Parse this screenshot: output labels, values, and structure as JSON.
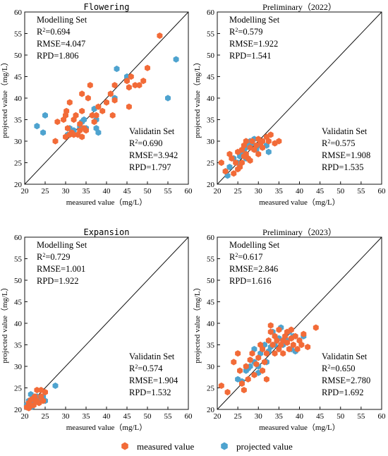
{
  "colors": {
    "measured": "#f26b38",
    "projected": "#4ea3cf",
    "axis": "#111111"
  },
  "legend": {
    "placement": "bottom-center",
    "measured_label": "measured value",
    "projected_label": "projected value",
    "marker": "hexagon"
  },
  "chart_data": [
    {
      "type": "scatter",
      "title": "Flowering",
      "title_style": "mono",
      "xlabel": "measured value（mg/L）",
      "ylabel": "projected value（mg/L）",
      "xlim": [
        20,
        60
      ],
      "ylim": [
        20,
        60
      ],
      "xticks": [
        "20",
        "25",
        "30",
        "35",
        "40",
        "45",
        "50",
        "55",
        "60"
      ],
      "yticks": [
        "20",
        "25",
        "30",
        "35",
        "40",
        "45",
        "50",
        "55",
        "60"
      ],
      "reference_line": "1:1",
      "modelling": {
        "heading": "Modelling Set",
        "r2": "=0.694",
        "rmse": "RMSE=4.047",
        "rpd": "RPD=1.806"
      },
      "validation": {
        "heading": "Validatin Set",
        "r2": "=0.690",
        "rmse": "RMSE=3.942",
        "rpd": "RPD=1.797"
      },
      "series": [
        {
          "name": "measured value",
          "points": [
            [
              27.5,
              30
            ],
            [
              28,
              34.5
            ],
            [
              29.5,
              35
            ],
            [
              30,
              36
            ],
            [
              30.2,
              37
            ],
            [
              30.5,
              33
            ],
            [
              31,
              39
            ],
            [
              31,
              31.5
            ],
            [
              31.5,
              32
            ],
            [
              32,
              35
            ],
            [
              32.5,
              36
            ],
            [
              33,
              31.5
            ],
            [
              33.5,
              32.5
            ],
            [
              33.5,
              34
            ],
            [
              34,
              37
            ],
            [
              34,
              41
            ],
            [
              34.5,
              33
            ],
            [
              35,
              32.5
            ],
            [
              36,
              43
            ],
            [
              36.5,
              36
            ],
            [
              37,
              34.5
            ],
            [
              37.5,
              36
            ],
            [
              38,
              38
            ],
            [
              39,
              37
            ],
            [
              40,
              39
            ],
            [
              41,
              41
            ],
            [
              41.5,
              36
            ],
            [
              42,
              39.5
            ],
            [
              42,
              43
            ],
            [
              45,
              44
            ],
            [
              46,
              45
            ],
            [
              45.5,
              42.5
            ],
            [
              45.5,
              38
            ],
            [
              47,
              43
            ],
            [
              48,
              43
            ],
            [
              49,
              44
            ],
            [
              50,
              47
            ],
            [
              53,
              54.5
            ],
            [
              34,
              31
            ],
            [
              35.5,
              40
            ],
            [
              30,
              31
            ],
            [
              32,
              31.5
            ]
          ]
        },
        {
          "name": "projected value",
          "points": [
            [
              23,
              33.5
            ],
            [
              24.5,
              32
            ],
            [
              25,
              36
            ],
            [
              30.5,
              31.5
            ],
            [
              31,
              33
            ],
            [
              31.5,
              32
            ],
            [
              32,
              32.5
            ],
            [
              33.5,
              33.5
            ],
            [
              34,
              34.5
            ],
            [
              34.5,
              35
            ],
            [
              35,
              33
            ],
            [
              37,
              37.5
            ],
            [
              37.5,
              35
            ],
            [
              37.5,
              33
            ],
            [
              38,
              32
            ],
            [
              42,
              40
            ],
            [
              42.5,
              46.8
            ],
            [
              45,
              45
            ],
            [
              55,
              40
            ],
            [
              57,
              49
            ]
          ]
        }
      ]
    },
    {
      "type": "scatter",
      "title": "Preliminary（2022）",
      "title_style": "serif",
      "xlabel": "measured value（mg/L）",
      "ylabel": "projected value（mg/L）",
      "xlim": [
        20,
        60
      ],
      "ylim": [
        20,
        60
      ],
      "xticks": [
        "20",
        "25",
        "30",
        "35",
        "40",
        "45",
        "50",
        "55",
        "60"
      ],
      "yticks": [
        "20",
        "25",
        "30",
        "35",
        "40",
        "45",
        "50",
        "55",
        "60"
      ],
      "reference_line": "1:1",
      "modelling": {
        "heading": "Modelling Set",
        "r2": "=0.579",
        "rmse": "RMSE=1.922",
        "rpd": "RPD=1.541"
      },
      "validation": {
        "heading": "Validatin Set",
        "r2": "=0.575",
        "rmse": "RMSE=1.908",
        "rpd": "RPD=1.535"
      },
      "series": [
        {
          "name": "measured value",
          "points": [
            [
              21,
              25
            ],
            [
              22,
              23
            ],
            [
              23,
              27
            ],
            [
              23.5,
              26
            ],
            [
              24,
              22.5
            ],
            [
              24.5,
              25
            ],
            [
              25,
              27.5
            ],
            [
              25.5,
              24
            ],
            [
              26,
              25
            ],
            [
              26,
              28
            ],
            [
              26.5,
              29
            ],
            [
              27,
              27
            ],
            [
              27,
              30
            ],
            [
              27.5,
              26
            ],
            [
              28,
              28.5
            ],
            [
              28,
              25.5
            ],
            [
              28.5,
              30
            ],
            [
              29,
              28
            ],
            [
              29.5,
              29
            ],
            [
              30,
              27
            ],
            [
              30,
              30.5
            ],
            [
              30.5,
              29.5
            ],
            [
              31,
              28.5
            ],
            [
              31,
              30
            ],
            [
              32,
              31
            ],
            [
              32.5,
              30
            ],
            [
              33,
              31.5
            ],
            [
              34,
              29.5
            ],
            [
              35,
              30
            ],
            [
              25,
              23.5
            ],
            [
              26.5,
              26.5
            ]
          ]
        },
        {
          "name": "projected value",
          "points": [
            [
              22,
              23
            ],
            [
              22.5,
              22
            ],
            [
              23,
              24
            ],
            [
              24,
              26
            ],
            [
              25,
              25
            ],
            [
              25.5,
              26.5
            ],
            [
              26,
              27.5
            ],
            [
              26.5,
              28
            ],
            [
              27,
              28.5
            ],
            [
              27.5,
              29
            ],
            [
              28,
              30
            ],
            [
              28.5,
              29.5
            ],
            [
              29,
              30.5
            ],
            [
              29.5,
              28
            ],
            [
              30,
              29
            ],
            [
              31,
              30
            ],
            [
              32,
              29
            ],
            [
              32.5,
              27.5
            ],
            [
              27,
              26
            ],
            [
              26,
              27
            ]
          ]
        }
      ]
    },
    {
      "type": "scatter",
      "title": "Expansion",
      "title_style": "mono",
      "xlabel": "measured value（mg/L）",
      "ylabel": "projected value（mg/L）",
      "xlim": [
        20,
        60
      ],
      "ylim": [
        20,
        60
      ],
      "xticks": [
        "20",
        "25",
        "30",
        "35",
        "40",
        "45",
        "50",
        "55",
        "60"
      ],
      "yticks": [
        "20",
        "25",
        "30",
        "35",
        "40",
        "45",
        "50",
        "55",
        "60"
      ],
      "reference_line": "1:1",
      "modelling": {
        "heading": "Modelling Set",
        "r2": "=0.729",
        "rmse": "RMSE=1.001",
        "rpd": "RPD=1.922"
      },
      "validation": {
        "heading": "Validatin Set",
        "r2": "=0.574",
        "rmse": "RMSE=1.904",
        "rpd": "RPD=1.532"
      },
      "series": [
        {
          "name": "measured value",
          "points": [
            [
              20.5,
              20.5
            ],
            [
              21,
              21.5
            ],
            [
              21.5,
              20.8
            ],
            [
              22,
              22.5
            ],
            [
              22.2,
              21
            ],
            [
              22.5,
              23
            ],
            [
              23,
              24.5
            ],
            [
              23,
              22
            ],
            [
              23.5,
              21.5
            ],
            [
              24,
              23
            ],
            [
              24.5,
              22
            ],
            [
              25,
              24
            ],
            [
              21.5,
              22.2
            ],
            [
              22.8,
              21.8
            ],
            [
              24,
              24.5
            ],
            [
              21,
              20.3
            ]
          ]
        },
        {
          "name": "projected value",
          "points": [
            [
              20.5,
              21
            ],
            [
              21,
              22
            ],
            [
              21.5,
              23.5
            ],
            [
              22,
              21.5
            ],
            [
              22.5,
              22.5
            ],
            [
              23,
              23
            ],
            [
              23.5,
              22.8
            ],
            [
              24,
              22
            ],
            [
              24.5,
              23
            ],
            [
              25,
              22
            ],
            [
              27.5,
              25.5
            ],
            [
              21.8,
              20.6
            ]
          ]
        }
      ]
    },
    {
      "type": "scatter",
      "title": "Preliminary（2023）",
      "title_style": "serif",
      "xlabel": "measured value（mg/L）",
      "ylabel": "projected value（mg/L）",
      "xlim": [
        20,
        60
      ],
      "ylim": [
        20,
        60
      ],
      "xticks": [
        "20",
        "25",
        "30",
        "35",
        "40",
        "45",
        "50",
        "55",
        "60"
      ],
      "yticks": [
        "20",
        "25",
        "30",
        "35",
        "40",
        "45",
        "50",
        "55",
        "60"
      ],
      "reference_line": "1:1",
      "modelling": {
        "heading": "Modelling Set",
        "r2": "=0.617",
        "rmse": "RMSE=2.846",
        "rpd": "RPD=1.616"
      },
      "validation": {
        "heading": "Validatin Set",
        "r2": "=0.650",
        "rmse": "RMSE=2.780",
        "rpd": "RPD=1.692"
      },
      "series": [
        {
          "name": "measured value",
          "points": [
            [
              21,
              25.5
            ],
            [
              22.5,
              24
            ],
            [
              24,
              31
            ],
            [
              25,
              33
            ],
            [
              25.5,
              29
            ],
            [
              26,
              26
            ],
            [
              26.5,
              24.5
            ],
            [
              27,
              30
            ],
            [
              27.5,
              27
            ],
            [
              28,
              31.5
            ],
            [
              28.5,
              33
            ],
            [
              29,
              28
            ],
            [
              29.5,
              30.5
            ],
            [
              30,
              32
            ],
            [
              30.5,
              35
            ],
            [
              31,
              29
            ],
            [
              31,
              34
            ],
            [
              31.5,
              31
            ],
            [
              32,
              27
            ],
            [
              32,
              33
            ],
            [
              32.5,
              36
            ],
            [
              33,
              38
            ],
            [
              33,
              39.5
            ],
            [
              33.5,
              35
            ],
            [
              34,
              33
            ],
            [
              34,
              37
            ],
            [
              34.5,
              36
            ],
            [
              35,
              34
            ],
            [
              35,
              38.5
            ],
            [
              35.5,
              35
            ],
            [
              36,
              36
            ],
            [
              36,
              33
            ],
            [
              36.5,
              37
            ],
            [
              37,
              35.5
            ],
            [
              37,
              38
            ],
            [
              37.5,
              34
            ],
            [
              38,
              36.5
            ],
            [
              38,
              38.5
            ],
            [
              38.5,
              35
            ],
            [
              39,
              37
            ],
            [
              39.5,
              34
            ],
            [
              40,
              36
            ],
            [
              40.5,
              35
            ],
            [
              41,
              37.5
            ],
            [
              42,
              34.5
            ],
            [
              44,
              39
            ]
          ]
        },
        {
          "name": "projected value",
          "points": [
            [
              25,
              27
            ],
            [
              26,
              26.5
            ],
            [
              27,
              29
            ],
            [
              27.5,
              29.5
            ],
            [
              28,
              30
            ],
            [
              29,
              31
            ],
            [
              29,
              34
            ],
            [
              30,
              30
            ],
            [
              30.5,
              33
            ],
            [
              31.5,
              35
            ],
            [
              32,
              31
            ],
            [
              32.5,
              33.5
            ],
            [
              33,
              34.5
            ],
            [
              33.5,
              38
            ],
            [
              34,
              35
            ],
            [
              35,
              36.5
            ],
            [
              35.5,
              39
            ],
            [
              36,
              35
            ],
            [
              37,
              36
            ],
            [
              37.5,
              38
            ],
            [
              38,
              34
            ],
            [
              38.5,
              37
            ],
            [
              39,
              33.5
            ],
            [
              40,
              36
            ],
            [
              41,
              37
            ],
            [
              30,
              28.5
            ]
          ]
        }
      ]
    }
  ]
}
